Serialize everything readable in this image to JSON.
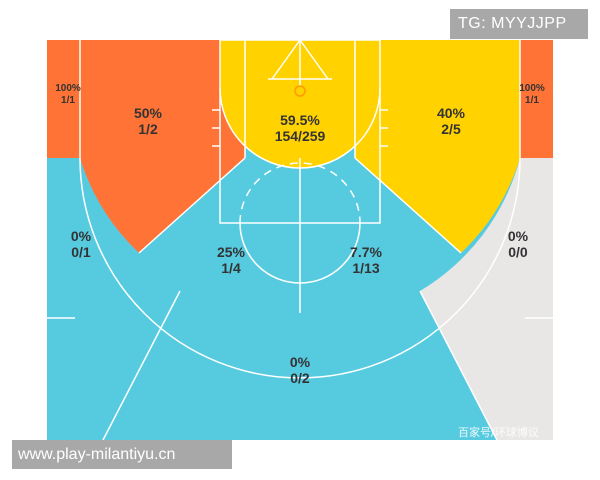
{
  "colors": {
    "cold": "#56cbe0",
    "warm": "#ffd200",
    "hot": "#ff7436",
    "empty": "#e9e6e6",
    "lines": "#ffffff"
  },
  "zones": {
    "left_corner": {
      "pct": "100%",
      "made_att": "1/1"
    },
    "right_corner": {
      "pct": "100%",
      "made_att": "1/1"
    },
    "left_baseline_mid": {
      "pct": "50%",
      "made_att": "1/2"
    },
    "paint": {
      "pct": "59.5%",
      "made_att": "154/259"
    },
    "right_baseline_mid": {
      "pct": "40%",
      "made_att": "2/5"
    },
    "left_wing_three": {
      "pct": "0%",
      "made_att": "0/1"
    },
    "right_wing_three": {
      "pct": "0%",
      "made_att": "0/0"
    },
    "left_elbow_mid": {
      "pct": "25%",
      "made_att": "1/4"
    },
    "right_elbow_mid": {
      "pct": "7.7%",
      "made_att": "1/13"
    },
    "top_key_three": {
      "pct": "0%",
      "made_att": "0/2"
    }
  },
  "overlays": {
    "tag": "TG: MYYJJPP",
    "site": "www.play-milantiyu.cn",
    "watermark": "百家号/环球博议"
  }
}
